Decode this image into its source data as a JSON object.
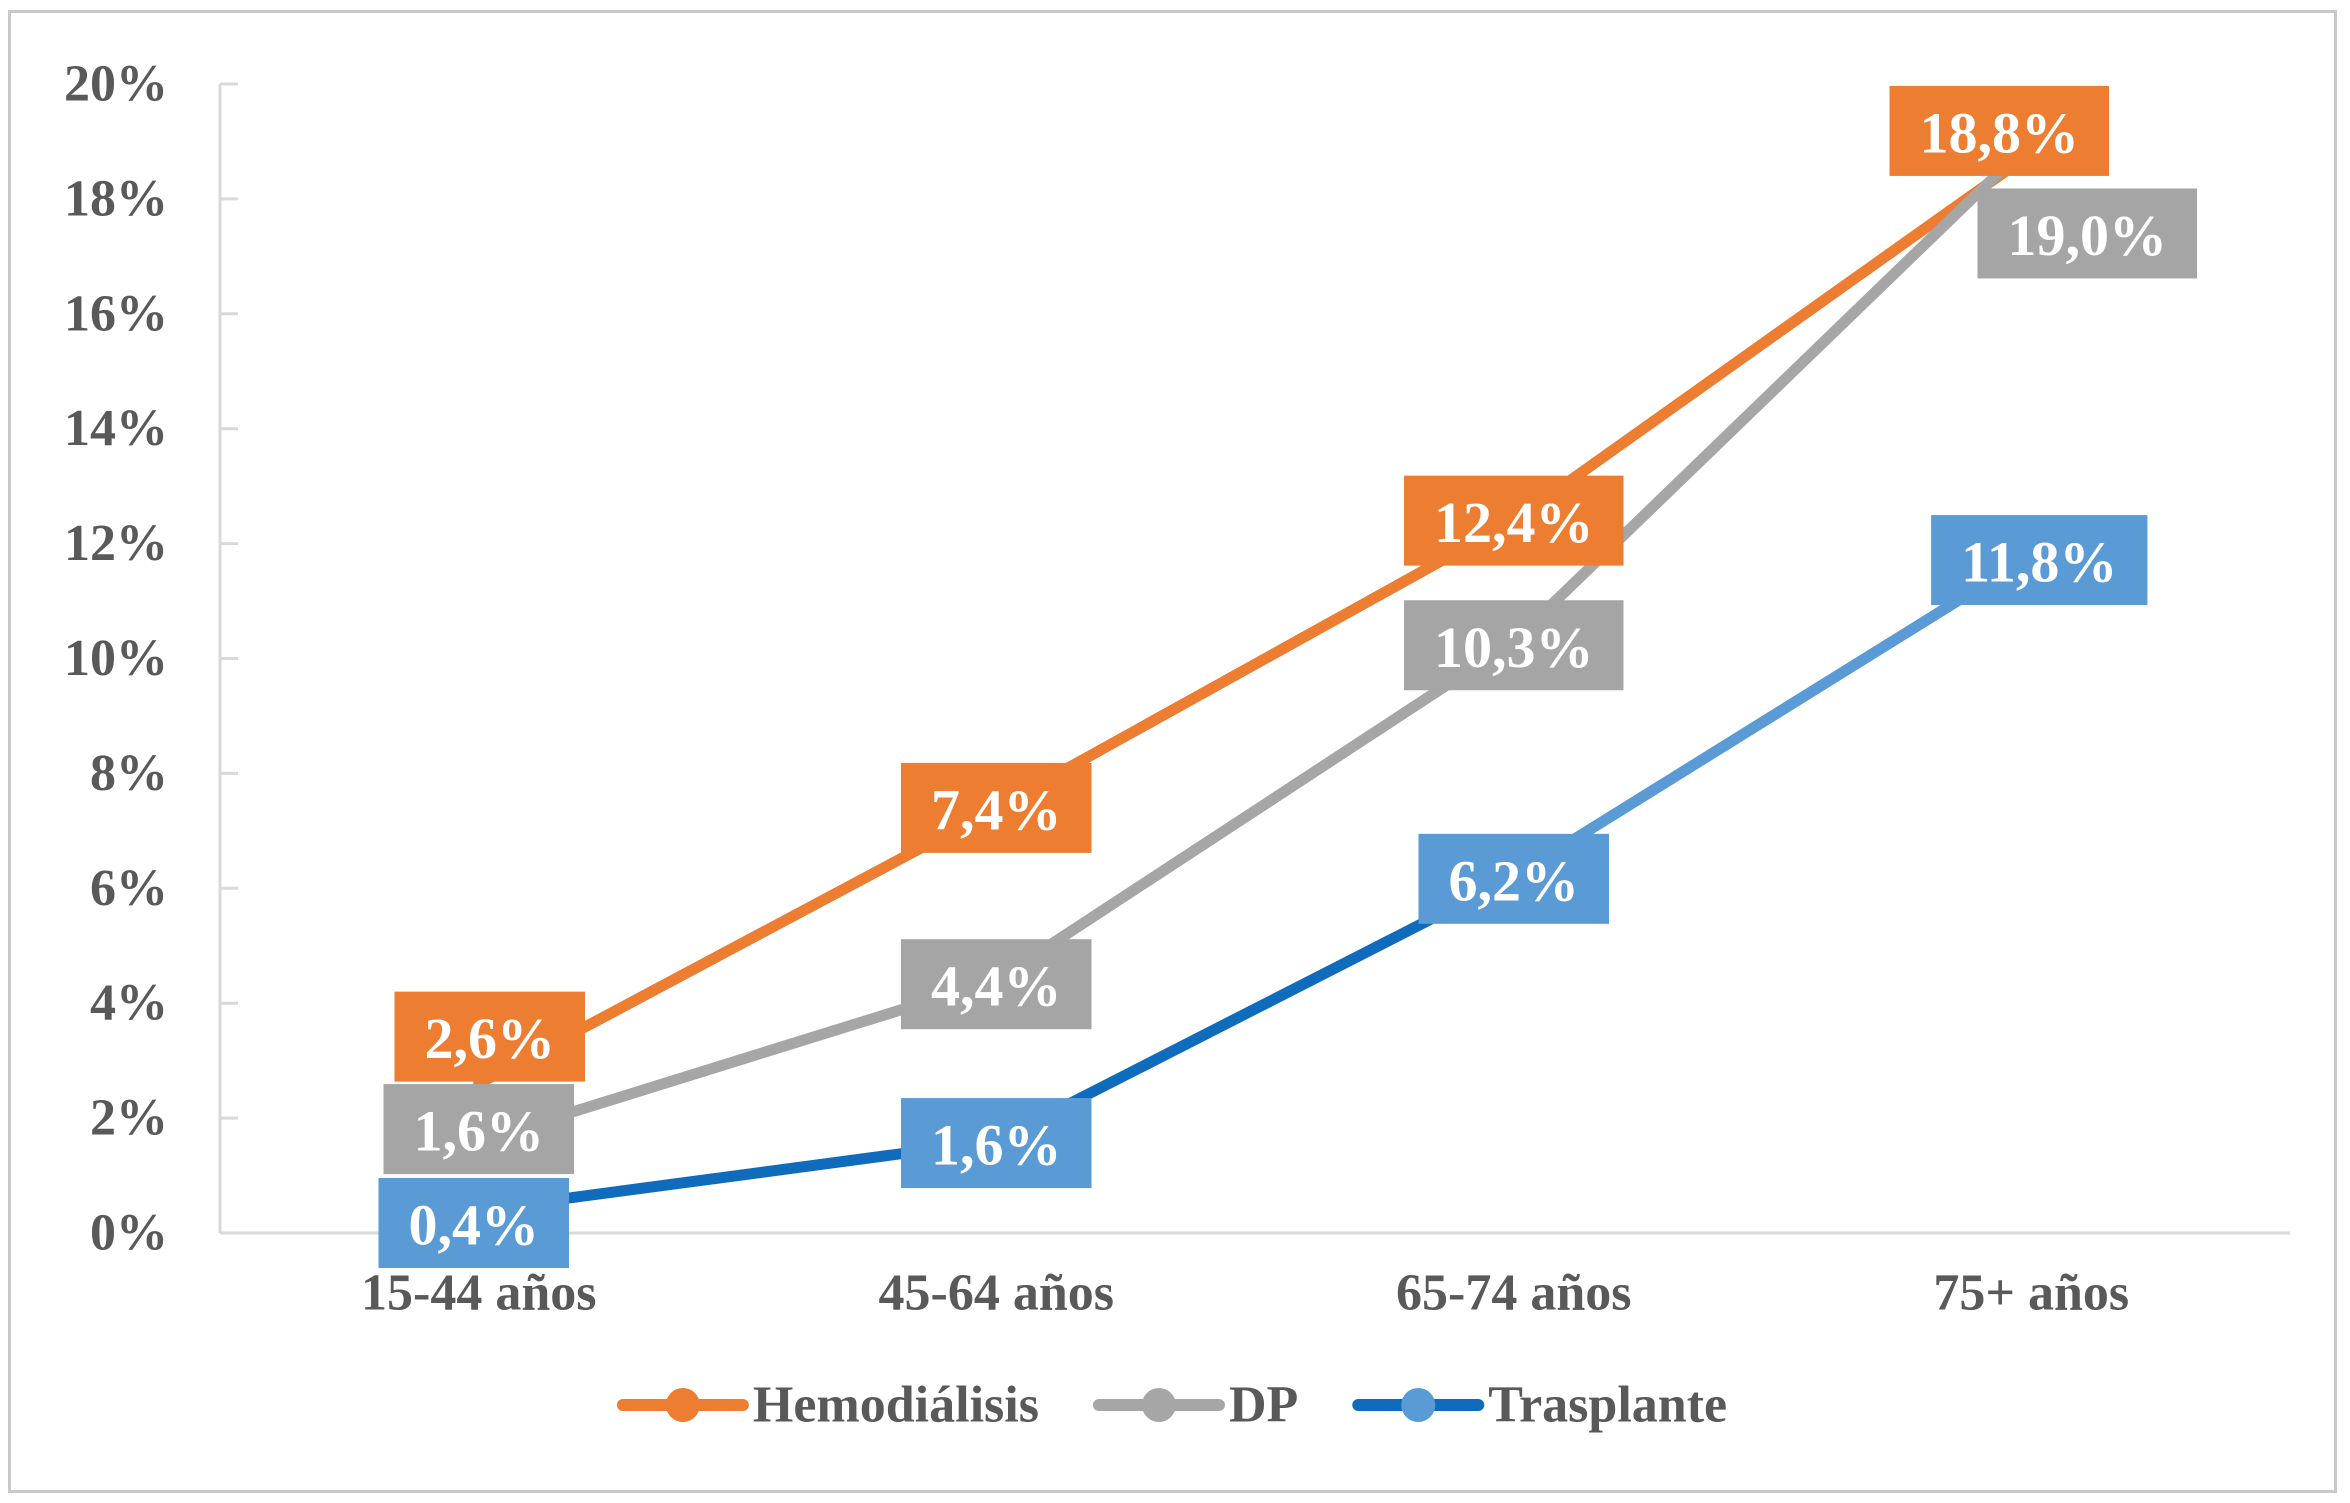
{
  "chart_data": {
    "type": "line",
    "title": "",
    "categories": [
      "15-44 años",
      "45-64 años",
      "65-74 años",
      "75+ años"
    ],
    "series": [
      {
        "name": "Hemodiálisis",
        "values": [
          2.6,
          7.4,
          12.4,
          18.8
        ],
        "labels": [
          "2,6%",
          "7,4%",
          "12,4%",
          "18,8%"
        ],
        "color": "#ED7D31",
        "label_bg": "#ED7D31",
        "marker": "circle"
      },
      {
        "name": "DP",
        "values": [
          1.6,
          4.4,
          10.3,
          19.0
        ],
        "labels": [
          "1,6%",
          "4,4%",
          "10,3%",
          "19,0%"
        ],
        "color": "#A6A6A6",
        "label_bg": "#A5A5A5",
        "marker": "circle"
      },
      {
        "name": "Trasplante",
        "values": [
          0.4,
          1.6,
          6.2,
          11.8
        ],
        "labels": [
          "0,4%",
          "1,6%",
          "6,2%",
          "11,8%"
        ],
        "color": "#0F6CBD",
        "segment_colors": [
          "#0F6CBD",
          "#0F6CBD",
          "#5B9BD5"
        ],
        "label_bg": "#5B9BD5",
        "marker_color": "#5B9BD5",
        "marker": "circle"
      }
    ],
    "y_axis": {
      "ticks": [
        "0%",
        "2%",
        "4%",
        "6%",
        "8%",
        "10%",
        "12%",
        "14%",
        "16%",
        "18%",
        "20%"
      ],
      "min": 0,
      "max": 20,
      "tick_step": 2
    },
    "xlabel": "",
    "ylabel": "",
    "grid": false,
    "legend_position": "bottom",
    "data_label_text_color": "#FFFFFF",
    "axis_line_color": "#D9D9D9",
    "tick_label_color": "#595959",
    "legend_text_color": "#595959",
    "chart_border_color": "#C9C9C9",
    "background_color": "#FFFFFF",
    "layout_hints": {
      "label_offsets": [
        [
          [
            11,
            -47
          ],
          [
            0,
            0
          ],
          [
            0,
            0
          ],
          [
            -32,
            -22
          ]
        ],
        [
          [
            0,
            -12
          ],
          [
            0,
            4
          ],
          [
            0,
            4
          ],
          [
            56,
            92
          ]
        ],
        [
          [
            -5,
            13
          ],
          [
            0,
            2
          ],
          [
            0,
            2
          ],
          [
            8,
            5
          ]
        ]
      ]
    }
  }
}
